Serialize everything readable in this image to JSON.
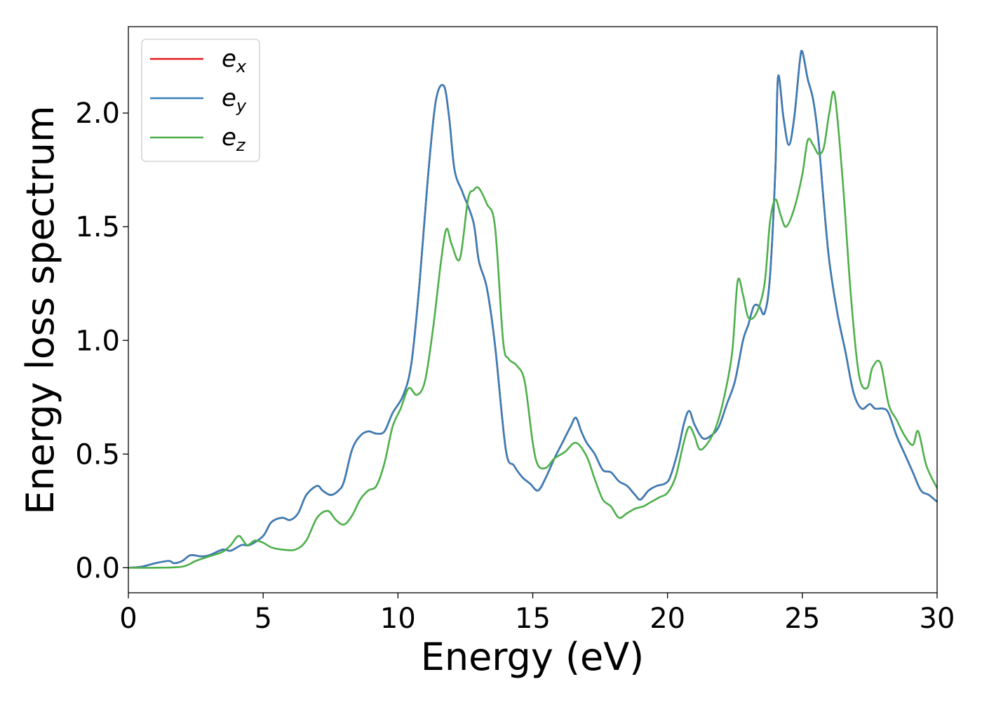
{
  "chart_data": {
    "type": "line",
    "xlabel": "Energy (eV)",
    "ylabel": "Energy loss spectrum",
    "xlim": [
      0,
      30
    ],
    "ylim": [
      -0.11,
      2.38
    ],
    "xticks": [
      0,
      5,
      10,
      15,
      20,
      25,
      30
    ],
    "xtick_labels": [
      "0",
      "5",
      "10",
      "15",
      "20",
      "25",
      "30"
    ],
    "yticks": [
      0.0,
      0.5,
      1.0,
      1.5,
      2.0
    ],
    "ytick_labels": [
      "0.0",
      "0.5",
      "1.0",
      "1.5",
      "2.0"
    ],
    "grid": false,
    "legend_position": "upper-left",
    "legend": [
      {
        "base": "e",
        "sub": "x",
        "color": "#e41a1c"
      },
      {
        "base": "e",
        "sub": "y",
        "color": "#377eb8"
      },
      {
        "base": "e",
        "sub": "z",
        "color": "#4daf4a"
      }
    ],
    "series": [
      {
        "color": "#e41a1c",
        "x": [
          0,
          0.5,
          1.0,
          1.5,
          1.7,
          2.0,
          2.3,
          2.7,
          3.0,
          3.5,
          3.8,
          4.2,
          4.5,
          5.0,
          5.3,
          5.7,
          6.0,
          6.3,
          6.6,
          7.0,
          7.2,
          7.5,
          7.8,
          8.0,
          8.3,
          8.6,
          8.9,
          9.2,
          9.5,
          9.8,
          10.2,
          10.5,
          10.8,
          11.1,
          11.4,
          11.7,
          11.9,
          12.1,
          12.4,
          12.8,
          13.0,
          13.3,
          13.6,
          14.0,
          14.3,
          14.6,
          14.9,
          15.2,
          15.5,
          15.8,
          16.1,
          16.4,
          16.6,
          16.8,
          17.0,
          17.3,
          17.6,
          17.9,
          18.2,
          18.5,
          18.8,
          19.0,
          19.3,
          19.6,
          19.9,
          20.1,
          20.4,
          20.6,
          20.8,
          21.0,
          21.3,
          21.6,
          21.9,
          22.2,
          22.5,
          22.8,
          23.0,
          23.2,
          23.4,
          23.6,
          23.8,
          24.0,
          24.1,
          24.3,
          24.5,
          24.7,
          24.9,
          25.0,
          25.2,
          25.4,
          25.6,
          25.8,
          26.0,
          26.3,
          26.6,
          26.9,
          27.2,
          27.5,
          27.7,
          28.0,
          28.2,
          28.5,
          28.8,
          29.1,
          29.4,
          29.7,
          30.0
        ],
        "values": [
          0.0,
          0.005,
          0.02,
          0.03,
          0.02,
          0.03,
          0.055,
          0.05,
          0.055,
          0.08,
          0.075,
          0.1,
          0.1,
          0.14,
          0.2,
          0.22,
          0.21,
          0.24,
          0.32,
          0.36,
          0.34,
          0.32,
          0.34,
          0.38,
          0.52,
          0.58,
          0.6,
          0.59,
          0.6,
          0.68,
          0.76,
          0.9,
          1.25,
          1.7,
          2.05,
          2.12,
          1.98,
          1.75,
          1.65,
          1.52,
          1.35,
          1.23,
          0.98,
          0.52,
          0.45,
          0.4,
          0.37,
          0.34,
          0.4,
          0.48,
          0.55,
          0.62,
          0.66,
          0.6,
          0.55,
          0.5,
          0.43,
          0.42,
          0.38,
          0.36,
          0.32,
          0.3,
          0.34,
          0.36,
          0.37,
          0.4,
          0.52,
          0.63,
          0.69,
          0.63,
          0.57,
          0.58,
          0.62,
          0.72,
          0.82,
          1.0,
          1.07,
          1.15,
          1.15,
          1.12,
          1.28,
          1.75,
          2.16,
          1.98,
          1.86,
          1.98,
          2.22,
          2.27,
          2.15,
          2.06,
          1.88,
          1.6,
          1.35,
          1.12,
          0.95,
          0.77,
          0.7,
          0.72,
          0.7,
          0.7,
          0.68,
          0.58,
          0.5,
          0.42,
          0.34,
          0.32,
          0.29
        ]
      },
      {
        "color": "#377eb8",
        "x": [
          0,
          0.5,
          1.0,
          1.5,
          1.7,
          2.0,
          2.3,
          2.7,
          3.0,
          3.5,
          3.8,
          4.2,
          4.5,
          5.0,
          5.3,
          5.7,
          6.0,
          6.3,
          6.6,
          7.0,
          7.2,
          7.5,
          7.8,
          8.0,
          8.3,
          8.6,
          8.9,
          9.2,
          9.5,
          9.8,
          10.2,
          10.5,
          10.8,
          11.1,
          11.4,
          11.7,
          11.9,
          12.1,
          12.4,
          12.8,
          13.0,
          13.3,
          13.6,
          14.0,
          14.3,
          14.6,
          14.9,
          15.2,
          15.5,
          15.8,
          16.1,
          16.4,
          16.6,
          16.8,
          17.0,
          17.3,
          17.6,
          17.9,
          18.2,
          18.5,
          18.8,
          19.0,
          19.3,
          19.6,
          19.9,
          20.1,
          20.4,
          20.6,
          20.8,
          21.0,
          21.3,
          21.6,
          21.9,
          22.2,
          22.5,
          22.8,
          23.0,
          23.2,
          23.4,
          23.6,
          23.8,
          24.0,
          24.1,
          24.3,
          24.5,
          24.7,
          24.9,
          25.0,
          25.2,
          25.4,
          25.6,
          25.8,
          26.0,
          26.3,
          26.6,
          26.9,
          27.2,
          27.5,
          27.7,
          28.0,
          28.2,
          28.5,
          28.8,
          29.1,
          29.4,
          29.7,
          30.0
        ],
        "values": [
          0.0,
          0.005,
          0.02,
          0.03,
          0.02,
          0.03,
          0.055,
          0.05,
          0.055,
          0.08,
          0.075,
          0.1,
          0.1,
          0.14,
          0.2,
          0.22,
          0.21,
          0.24,
          0.32,
          0.36,
          0.34,
          0.32,
          0.34,
          0.38,
          0.52,
          0.58,
          0.6,
          0.59,
          0.6,
          0.68,
          0.76,
          0.9,
          1.25,
          1.7,
          2.05,
          2.12,
          1.98,
          1.75,
          1.65,
          1.52,
          1.35,
          1.23,
          0.98,
          0.52,
          0.45,
          0.4,
          0.37,
          0.34,
          0.4,
          0.48,
          0.55,
          0.62,
          0.66,
          0.6,
          0.55,
          0.5,
          0.43,
          0.42,
          0.38,
          0.36,
          0.32,
          0.3,
          0.34,
          0.36,
          0.37,
          0.4,
          0.52,
          0.63,
          0.69,
          0.63,
          0.57,
          0.58,
          0.62,
          0.72,
          0.82,
          1.0,
          1.07,
          1.15,
          1.15,
          1.12,
          1.28,
          1.75,
          2.16,
          1.98,
          1.86,
          1.98,
          2.22,
          2.27,
          2.15,
          2.06,
          1.88,
          1.6,
          1.35,
          1.12,
          0.95,
          0.77,
          0.7,
          0.72,
          0.7,
          0.7,
          0.68,
          0.58,
          0.5,
          0.42,
          0.34,
          0.32,
          0.29
        ]
      },
      {
        "color": "#4daf4a",
        "x": [
          0,
          1.0,
          2.0,
          2.5,
          3.0,
          3.5,
          3.8,
          4.1,
          4.4,
          4.7,
          5.0,
          5.3,
          5.7,
          6.2,
          6.6,
          7.0,
          7.4,
          7.7,
          8.0,
          8.3,
          8.6,
          8.9,
          9.2,
          9.5,
          9.8,
          10.1,
          10.4,
          10.7,
          11.0,
          11.3,
          11.6,
          11.8,
          12.0,
          12.3,
          12.6,
          12.8,
          13.0,
          13.3,
          13.6,
          13.9,
          14.1,
          14.4,
          14.7,
          15.0,
          15.2,
          15.5,
          15.8,
          16.2,
          16.6,
          17.0,
          17.3,
          17.6,
          17.9,
          18.2,
          18.5,
          18.8,
          19.1,
          19.4,
          19.7,
          20.0,
          20.3,
          20.6,
          20.8,
          21.0,
          21.2,
          21.5,
          21.8,
          22.1,
          22.4,
          22.6,
          22.8,
          23.0,
          23.3,
          23.6,
          23.8,
          24.0,
          24.2,
          24.4,
          24.7,
          25.0,
          25.2,
          25.4,
          25.6,
          25.8,
          26.0,
          26.2,
          26.5,
          26.8,
          27.1,
          27.4,
          27.6,
          27.9,
          28.2,
          28.5,
          28.8,
          29.1,
          29.3,
          29.6,
          30.0
        ],
        "values": [
          0.0,
          0.0,
          0.005,
          0.03,
          0.05,
          0.07,
          0.1,
          0.14,
          0.1,
          0.12,
          0.11,
          0.09,
          0.08,
          0.08,
          0.12,
          0.22,
          0.25,
          0.21,
          0.19,
          0.23,
          0.3,
          0.34,
          0.36,
          0.46,
          0.62,
          0.7,
          0.79,
          0.76,
          0.82,
          1.05,
          1.35,
          1.49,
          1.42,
          1.36,
          1.62,
          1.66,
          1.67,
          1.6,
          1.5,
          1.0,
          0.92,
          0.89,
          0.82,
          0.55,
          0.45,
          0.44,
          0.48,
          0.51,
          0.55,
          0.49,
          0.39,
          0.3,
          0.27,
          0.22,
          0.24,
          0.26,
          0.27,
          0.29,
          0.31,
          0.33,
          0.4,
          0.55,
          0.62,
          0.58,
          0.52,
          0.55,
          0.62,
          0.75,
          0.95,
          1.26,
          1.2,
          1.1,
          1.12,
          1.25,
          1.52,
          1.62,
          1.55,
          1.5,
          1.58,
          1.73,
          1.88,
          1.86,
          1.82,
          1.85,
          2.0,
          2.08,
          1.7,
          1.2,
          0.85,
          0.79,
          0.88,
          0.9,
          0.72,
          0.65,
          0.58,
          0.54,
          0.6,
          0.45,
          0.35
        ]
      }
    ]
  }
}
